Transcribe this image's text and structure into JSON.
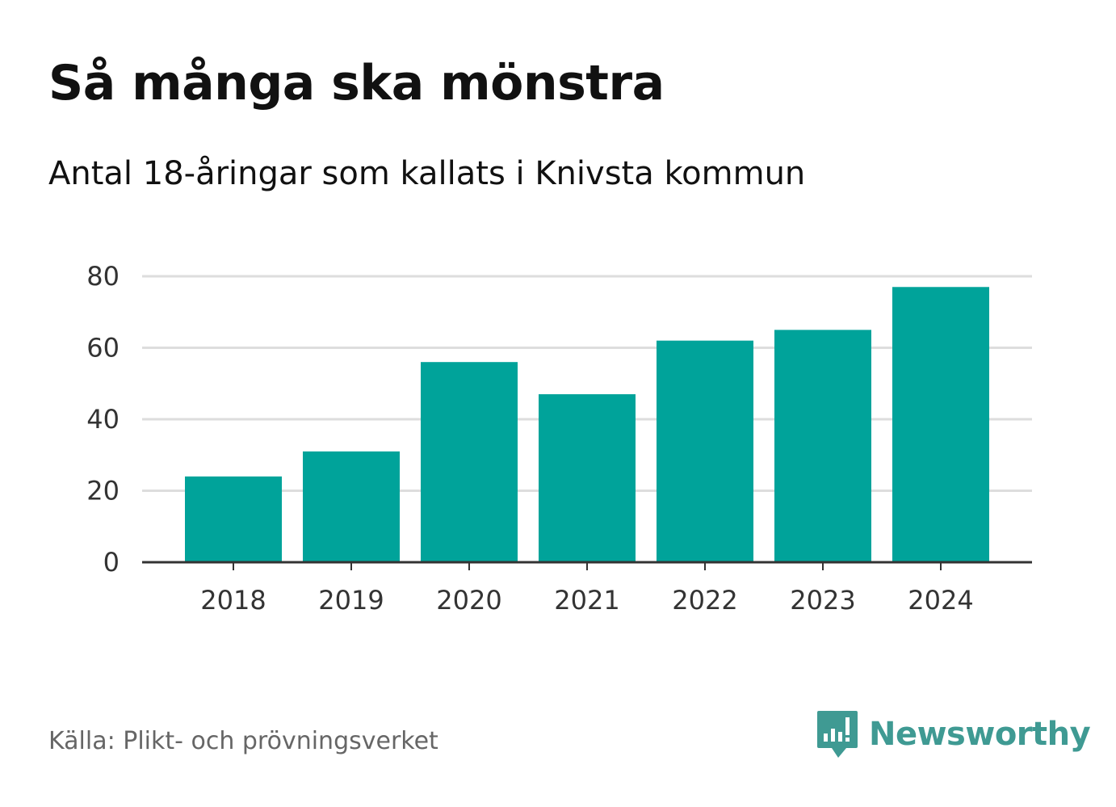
{
  "header": {
    "title": "Så många ska mönstra",
    "subtitle": "Antal 18-åringar som kallats i Knivsta kommun"
  },
  "footer": {
    "source": "Källa: Plikt- och prövningsverket",
    "brand": "Newsworthy",
    "brand_icon": "newsworthy-logo-icon"
  },
  "colors": {
    "bar": "#00a39a",
    "grid": "#dddddd",
    "axis": "#333333",
    "brand": "#3f9a93"
  },
  "chart_data": {
    "type": "bar",
    "title": "Så många ska mönstra",
    "subtitle": "Antal 18-åringar som kallats i Knivsta kommun",
    "xlabel": "",
    "ylabel": "",
    "categories": [
      "2018",
      "2019",
      "2020",
      "2021",
      "2022",
      "2023",
      "2024"
    ],
    "values": [
      24,
      31,
      56,
      47,
      62,
      65,
      77
    ],
    "ylim": [
      0,
      80
    ],
    "yticks": [
      0,
      20,
      40,
      60,
      80
    ],
    "grid": true
  }
}
